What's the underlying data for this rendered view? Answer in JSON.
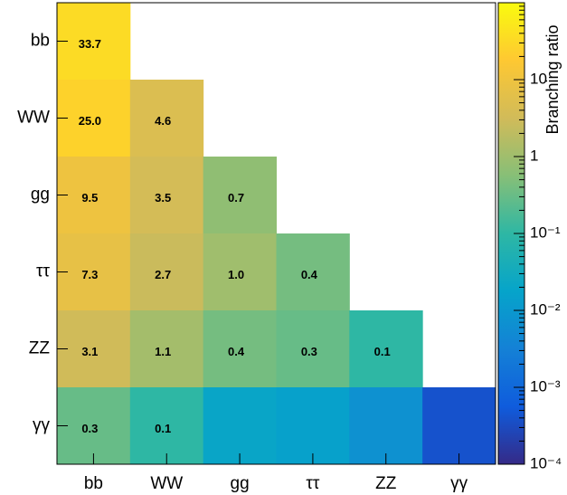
{
  "chart_data": {
    "type": "heatmap",
    "title": "",
    "xlabel": "",
    "ylabel": "",
    "x_categories": [
      "bb",
      "WW",
      "gg",
      "ττ",
      "ZZ",
      "γγ"
    ],
    "y_categories": [
      "bb",
      "WW",
      "gg",
      "ττ",
      "ZZ",
      "γγ"
    ],
    "cells": [
      {
        "x": "bb",
        "y": "bb",
        "value": 33.7,
        "label": "33.7"
      },
      {
        "x": "bb",
        "y": "WW",
        "value": 25.0,
        "label": "25.0"
      },
      {
        "x": "WW",
        "y": "WW",
        "value": 4.6,
        "label": "4.6"
      },
      {
        "x": "bb",
        "y": "gg",
        "value": 9.5,
        "label": "9.5"
      },
      {
        "x": "WW",
        "y": "gg",
        "value": 3.5,
        "label": "3.5"
      },
      {
        "x": "gg",
        "y": "gg",
        "value": 0.7,
        "label": "0.7"
      },
      {
        "x": "bb",
        "y": "ττ",
        "value": 7.3,
        "label": "7.3"
      },
      {
        "x": "WW",
        "y": "ττ",
        "value": 2.7,
        "label": "2.7"
      },
      {
        "x": "gg",
        "y": "ττ",
        "value": 1.0,
        "label": "1.0"
      },
      {
        "x": "ττ",
        "y": "ττ",
        "value": 0.4,
        "label": "0.4"
      },
      {
        "x": "bb",
        "y": "ZZ",
        "value": 3.1,
        "label": "3.1"
      },
      {
        "x": "WW",
        "y": "ZZ",
        "value": 1.1,
        "label": "1.1"
      },
      {
        "x": "gg",
        "y": "ZZ",
        "value": 0.4,
        "label": "0.4"
      },
      {
        "x": "ττ",
        "y": "ZZ",
        "value": 0.3,
        "label": "0.3"
      },
      {
        "x": "ZZ",
        "y": "ZZ",
        "value": 0.1,
        "label": "0.1"
      },
      {
        "x": "bb",
        "y": "γγ",
        "value": 0.3,
        "label": "0.3"
      },
      {
        "x": "WW",
        "y": "γγ",
        "value": 0.1,
        "label": "0.1"
      },
      {
        "x": "gg",
        "y": "γγ",
        "value": 0.02,
        "label": ""
      },
      {
        "x": "ττ",
        "y": "γγ",
        "value": 0.015,
        "label": ""
      },
      {
        "x": "ZZ",
        "y": "γγ",
        "value": 0.007,
        "label": ""
      },
      {
        "x": "γγ",
        "y": "γγ",
        "value": 0.0004,
        "label": ""
      }
    ],
    "colorbar": {
      "title": "Branching ratio",
      "scale": "log",
      "range": [
        0.0001,
        100
      ],
      "tick_labels": [
        "10⁻⁴",
        "10⁻³",
        "10⁻²",
        "10⁻¹",
        "1",
        "10"
      ],
      "tick_values": [
        0.0001,
        0.001,
        0.01,
        0.1,
        1,
        10
      ],
      "colormap": [
        "#352a87",
        "#0f5cdd",
        "#1481d6",
        "#06a4ca",
        "#2eb7a4",
        "#87bf77",
        "#d1bb59",
        "#fec832",
        "#f9fb0e"
      ]
    },
    "grid": false,
    "legend": "none"
  }
}
